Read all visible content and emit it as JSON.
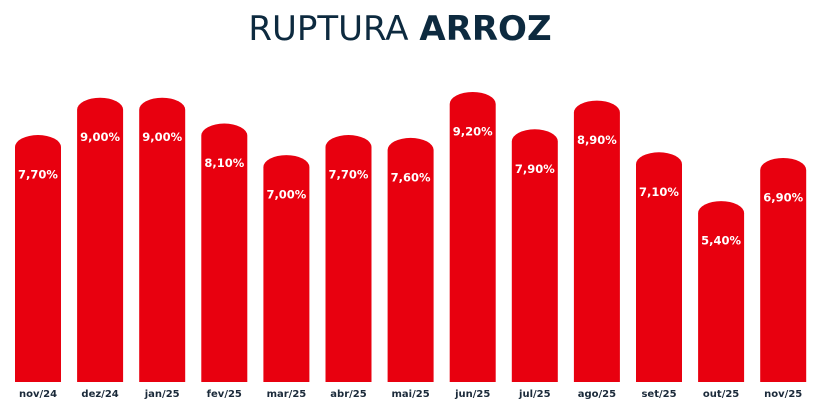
{
  "chart_data": {
    "type": "bar",
    "title": [
      "RUPTURA",
      "ARROZ"
    ],
    "categories": [
      "nov/24",
      "dez/24",
      "jan/25",
      "fev/25",
      "mar/25",
      "abr/25",
      "mai/25",
      "jun/25",
      "jul/25",
      "ago/25",
      "set/25",
      "out/25",
      "nov/25"
    ],
    "values": [
      7.7,
      9.0,
      9.0,
      8.1,
      7.0,
      7.7,
      7.6,
      9.2,
      7.9,
      8.9,
      7.1,
      5.4,
      6.9
    ],
    "value_labels": [
      "7,70%",
      "9,00%",
      "9,00%",
      "8,10%",
      "7,00%",
      "7,70%",
      "7,60%",
      "9,20%",
      "7,90%",
      "8,90%",
      "7,10%",
      "5,40%",
      "6,90%"
    ],
    "color": "#e8000f",
    "ylim": [
      -0.9,
      10
    ]
  }
}
